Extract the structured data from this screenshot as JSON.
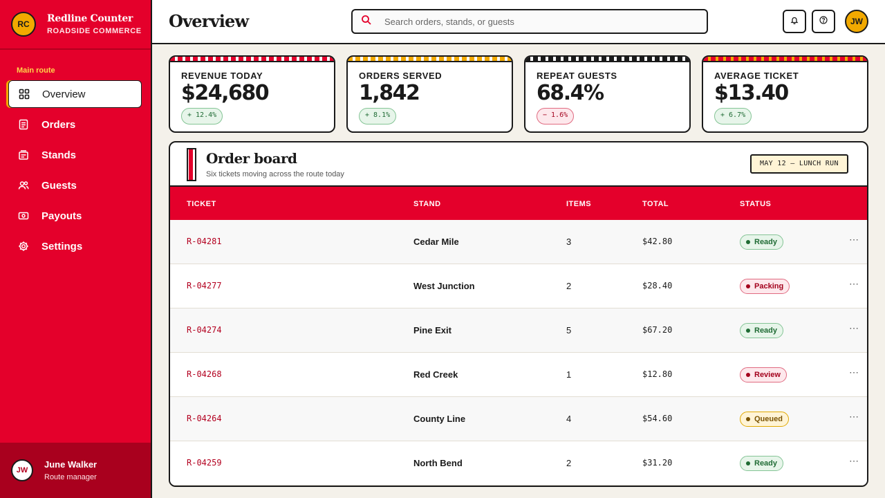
{
  "brand": {
    "initials": "RC",
    "name": "Redline Counter",
    "subtitle": "ROADSIDE COMMERCE",
    "logo_color": "#f2a900"
  },
  "sidebar": {
    "heading": "Main route",
    "items": [
      {
        "label": "Overview",
        "icon": "grid-icon",
        "active": true
      },
      {
        "label": "Orders",
        "icon": "document-icon"
      },
      {
        "label": "Stands",
        "icon": "storefront-icon"
      },
      {
        "label": "Guests",
        "icon": "users-icon"
      },
      {
        "label": "Payouts",
        "icon": "cash-icon"
      },
      {
        "label": "Settings",
        "icon": "gear-icon"
      }
    ],
    "user": {
      "initials": "JW",
      "name": "June Walker",
      "role": "Route manager"
    }
  },
  "header": {
    "title": "Overview",
    "search_placeholder": "Search orders, stands, or guests",
    "icons": [
      "bell-icon",
      "help-icon"
    ],
    "avatar_initials": "JW"
  },
  "kpis": [
    {
      "label": "REVENUE TODAY",
      "value": "$24,680",
      "delta": "+ 12.4%",
      "trend": "up",
      "stripe_colors": [
        "#e4002b",
        "#ffffff"
      ]
    },
    {
      "label": "ORDERS SERVED",
      "value": "1,842",
      "delta": "+ 8.1%",
      "trend": "up",
      "stripe_colors": [
        "#f2a900",
        "#ffffff"
      ]
    },
    {
      "label": "REPEAT GUESTS",
      "value": "68.4%",
      "delta": "− 1.6%",
      "trend": "down",
      "stripe_colors": [
        "#1a1a1a",
        "#ffffff"
      ]
    },
    {
      "label": "AVERAGE TICKET",
      "value": "$13.40",
      "delta": "+ 6.7%",
      "trend": "up",
      "stripe_colors": [
        "#e4002b",
        "#f2a900"
      ]
    }
  ],
  "board": {
    "title": "Order board",
    "subtitle": "Six tickets moving across the route today",
    "tag": "MAY 12 — LUNCH RUN",
    "columns": [
      "TICKET",
      "STAND",
      "ITEMS",
      "TOTAL",
      "STATUS"
    ],
    "rows": [
      {
        "ticket": "R-04281",
        "stand": "Cedar Mile",
        "items": "3",
        "total": "$42.80",
        "status": "Ready"
      },
      {
        "ticket": "R-04277",
        "stand": "West Junction",
        "items": "2",
        "total": "$28.40",
        "status": "Packing"
      },
      {
        "ticket": "R-04274",
        "stand": "Pine Exit",
        "items": "5",
        "total": "$67.20",
        "status": "Ready"
      },
      {
        "ticket": "R-04268",
        "stand": "Red Creek",
        "items": "1",
        "total": "$12.80",
        "status": "Review"
      },
      {
        "ticket": "R-04264",
        "stand": "County Line",
        "items": "4",
        "total": "$54.60",
        "status": "Queued"
      },
      {
        "ticket": "R-04259",
        "stand": "North Bend",
        "items": "2",
        "total": "$31.20",
        "status": "Ready"
      }
    ],
    "row_action_icon": "more-icon"
  },
  "colors": {
    "accent": "#e4002b",
    "gold": "#f2a900",
    "ink": "#1a1a1a",
    "background": "#f4f1ea"
  }
}
